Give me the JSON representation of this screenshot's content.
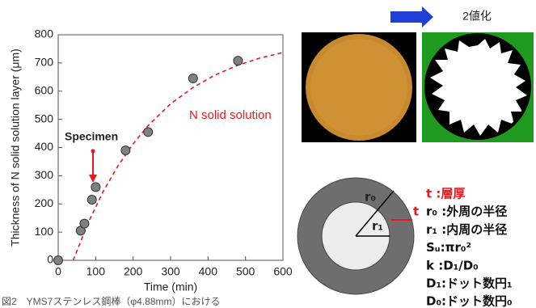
{
  "chart_data": {
    "type": "scatter",
    "x_label": "Time (min)",
    "y_label": "Thickness of N solid solution layer (μm)",
    "xlim": [
      0,
      600
    ],
    "xticks": [
      0,
      100,
      200,
      300,
      400,
      500,
      600
    ],
    "ylim": [
      0,
      800
    ],
    "yticks": [
      0,
      100,
      200,
      300,
      400,
      500,
      600,
      700,
      800
    ],
    "grid": false,
    "series": [
      {
        "color": "#808080",
        "marker": "circle",
        "x": [
          0,
          60,
          70,
          90,
          100,
          180,
          240,
          360,
          480
        ],
        "values": [
          0,
          105,
          130,
          215,
          260,
          390,
          455,
          645,
          708
        ]
      },
      {
        "color": "#e8191e",
        "line_style": "dashed",
        "x": [
          40,
          80,
          120,
          160,
          200,
          240,
          300,
          360,
          420,
          480,
          540,
          600
        ],
        "values": [
          0,
          133,
          244,
          336,
          413,
          478,
          555,
          613,
          658,
          692,
          718,
          737
        ]
      }
    ],
    "annotations": [
      "Specimen",
      "N solid solution"
    ]
  },
  "figure": {
    "binarize_label": "2値化",
    "diagram_labels": [
      "r₀",
      "r₁",
      "t"
    ],
    "legend": [
      "t :層厚",
      "r₀ :外周の半径",
      "r₁ :内周の半径",
      "Sᵤ:πr₀²",
      "k :D₁/D₀",
      "D₁:ドット数円₁",
      "D₀:ドット数円₀"
    ],
    "caption": "図2　YMS7ステンレス鋼棒（φ4.88mm）における"
  }
}
